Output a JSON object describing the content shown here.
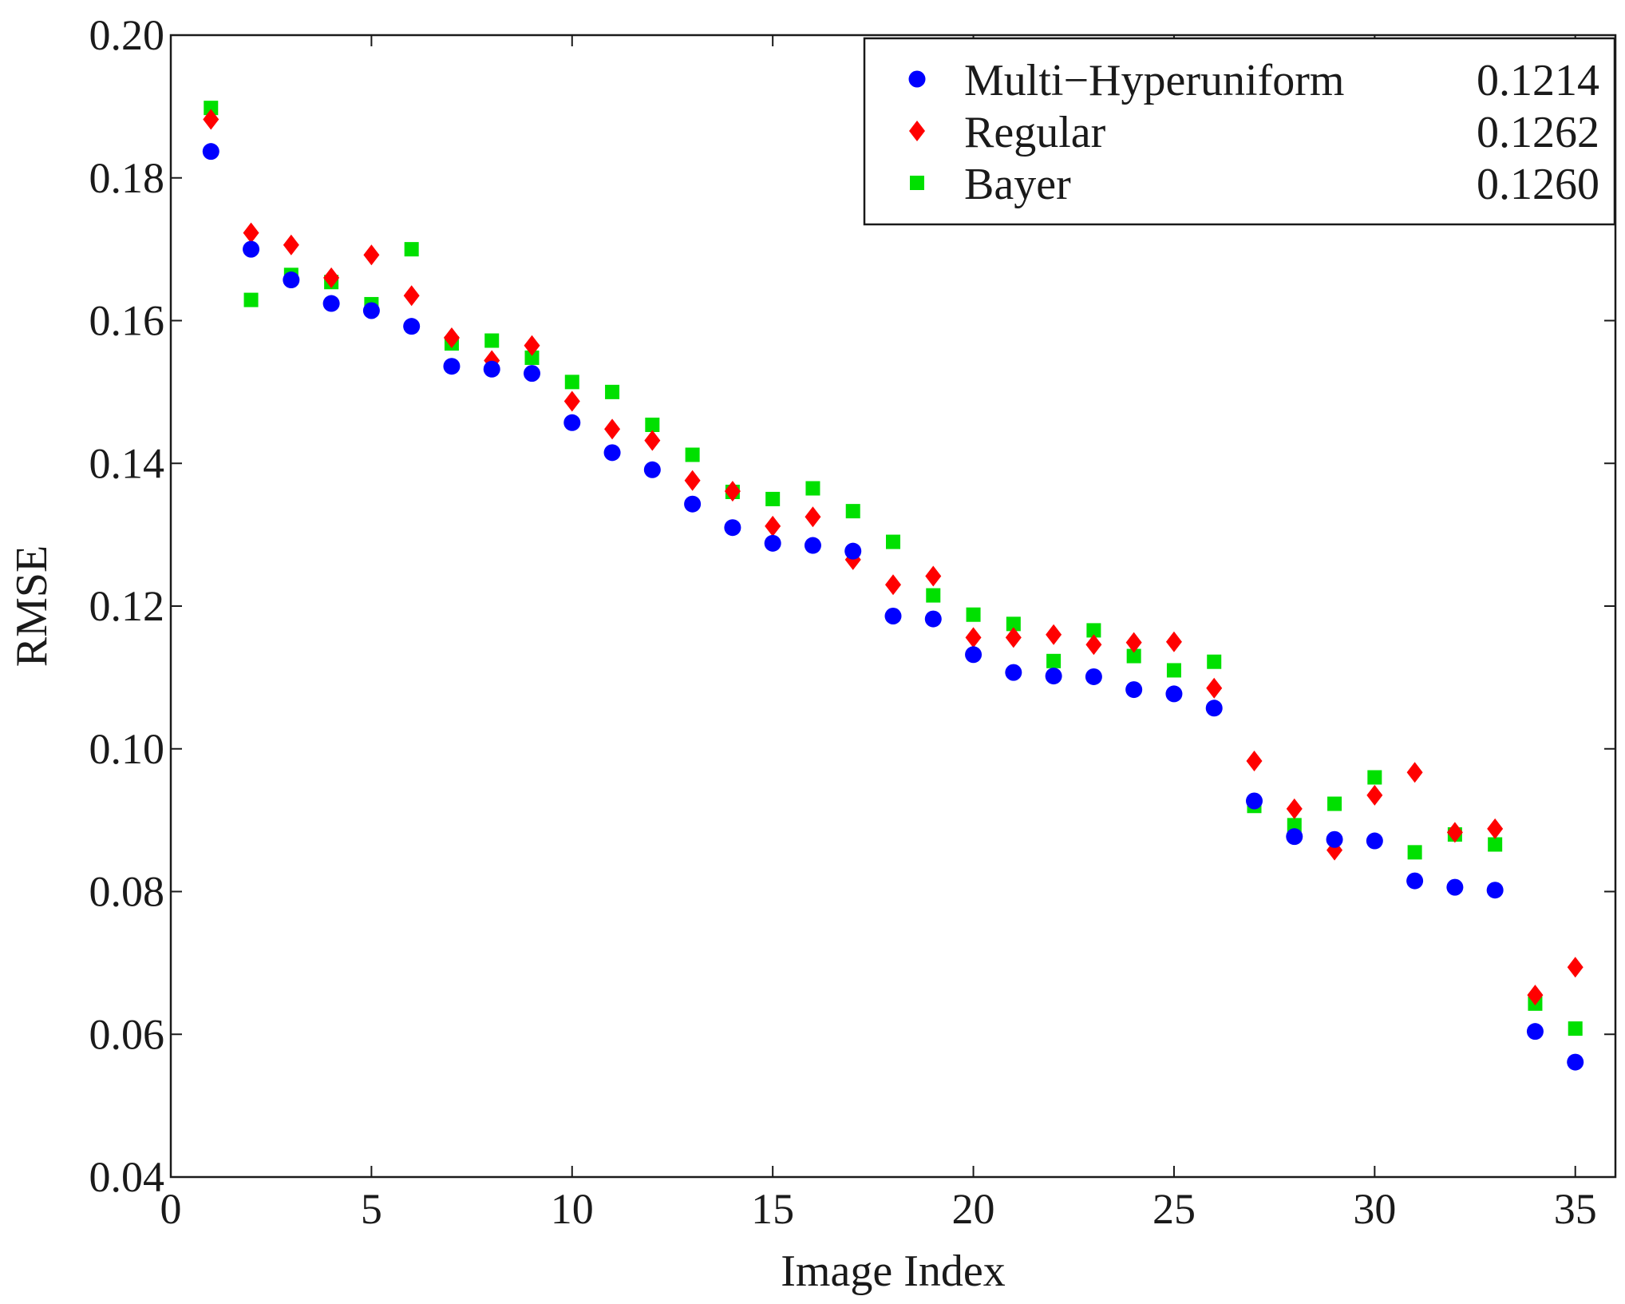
{
  "chart_data": {
    "type": "scatter",
    "title": "",
    "xlabel": "Image Index",
    "ylabel": "RMSE",
    "xlim": [
      0,
      36
    ],
    "ylim": [
      0.04,
      0.2
    ],
    "xticks": [
      0,
      5,
      10,
      15,
      20,
      25,
      30,
      35
    ],
    "xtick_labels": [
      "0",
      "5",
      "10",
      "15",
      "20",
      "25",
      "30",
      "35"
    ],
    "yticks": [
      0.04,
      0.06,
      0.08,
      0.1,
      0.12,
      0.14,
      0.16,
      0.18,
      0.2
    ],
    "ytick_labels": [
      "0.04",
      "0.06",
      "0.08",
      "0.10",
      "0.12",
      "0.14",
      "0.16",
      "0.18",
      "0.20"
    ],
    "grid": false,
    "legend_position": "top-right",
    "x": [
      1,
      2,
      3,
      4,
      5,
      6,
      7,
      8,
      9,
      10,
      11,
      12,
      13,
      14,
      15,
      16,
      17,
      18,
      19,
      20,
      21,
      22,
      23,
      24,
      25,
      26,
      27,
      28,
      29,
      30,
      31,
      32,
      33,
      34,
      35
    ],
    "series": [
      {
        "name": "Multi−Hyperuniform",
        "legend_value": "0.1214",
        "color": "#0000ff",
        "marker": "circle",
        "values": [
          0.1837,
          0.17,
          0.1657,
          0.1624,
          0.1614,
          0.1592,
          0.1536,
          0.1532,
          0.1526,
          0.1457,
          0.1415,
          0.1391,
          0.1343,
          0.131,
          0.1288,
          0.1285,
          0.1277,
          0.1186,
          0.1182,
          0.1132,
          0.1107,
          0.1102,
          0.1101,
          0.1083,
          0.1077,
          0.1057,
          0.0927,
          0.0877,
          0.0873,
          0.0871,
          0.0815,
          0.0806,
          0.0802,
          0.0604,
          0.0561
        ]
      },
      {
        "name": "Regular",
        "legend_value": "0.1262",
        "color": "#ff0000",
        "marker": "diamond",
        "values": [
          0.1882,
          0.1723,
          0.1706,
          0.166,
          0.1692,
          0.1635,
          0.1576,
          0.1544,
          0.1565,
          0.1487,
          0.1448,
          0.1432,
          0.1376,
          0.1361,
          0.1312,
          0.1325,
          0.1265,
          0.123,
          0.1242,
          0.1156,
          0.1156,
          0.116,
          0.1146,
          0.1149,
          0.115,
          0.1085,
          0.0983,
          0.0916,
          0.0858,
          0.0935,
          0.0967,
          0.0883,
          0.0888,
          0.0655,
          0.0694
        ]
      },
      {
        "name": "Bayer",
        "legend_value": "0.1260",
        "color": "#00e000",
        "marker": "square",
        "values": [
          0.1898,
          0.1629,
          0.1664,
          0.1654,
          0.1623,
          0.17,
          0.1568,
          0.1572,
          0.1548,
          0.1514,
          0.15,
          0.1454,
          0.1412,
          0.136,
          0.135,
          0.1365,
          0.1333,
          0.129,
          0.1215,
          0.1188,
          0.1175,
          0.1123,
          0.1166,
          0.113,
          0.111,
          0.1122,
          0.092,
          0.0893,
          0.0923,
          0.096,
          0.0855,
          0.088,
          0.0866,
          0.0643,
          0.0608
        ]
      }
    ]
  }
}
